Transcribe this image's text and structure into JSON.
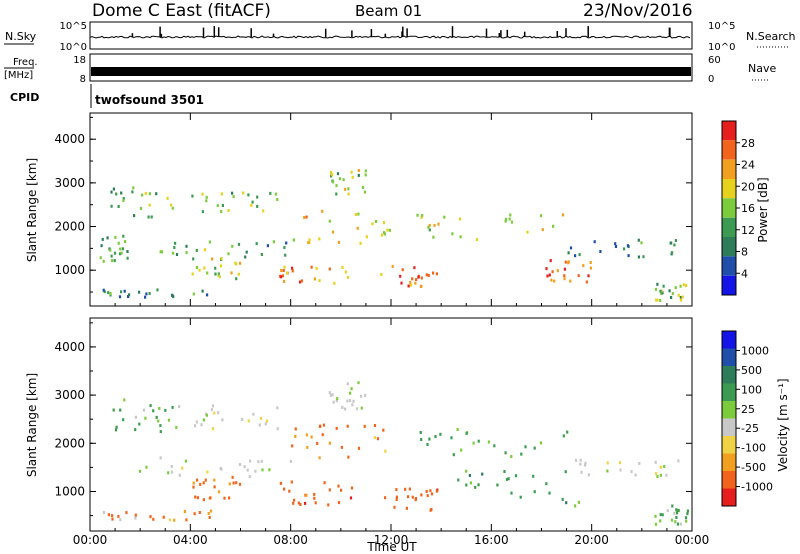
{
  "header": {
    "station": "Dome C East (fitACF)",
    "beam": "Beam 01",
    "date": "23/Nov/2016"
  },
  "colors": {
    "power_scale": [
      "#1414e6",
      "#1f4fa8",
      "#2e7d5a",
      "#3c9a52",
      "#7ccb3c",
      "#e6d21e",
      "#f0a01e",
      "#f0641e",
      "#e61e1e"
    ],
    "velocity_scale": [
      "#e61e1e",
      "#f0641e",
      "#f0a01e",
      "#f0d246",
      "#c8c8c8",
      "#7ccb3c",
      "#3c9a52",
      "#2e7d5a",
      "#1f4fa8",
      "#1414e6"
    ]
  },
  "panels": {
    "nsky": {
      "left_label": "N.Sky",
      "left_ticks": [
        "10^5",
        "10^0"
      ],
      "right_label": "N.Search",
      "right_ticks": [
        "10^5",
        "10^0"
      ]
    },
    "freq": {
      "left_label_1": "Freq.",
      "left_label_2": "[MHz]",
      "left_ticks": [
        "18",
        "8"
      ],
      "right_label": "Nave",
      "right_ticks": [
        "60",
        "0"
      ]
    },
    "cpid": {
      "label": "CPID",
      "text": "twofsound 3501"
    }
  },
  "chart_data": [
    {
      "type": "heatmap",
      "title": "",
      "xlabel": "",
      "ylabel": "Slant Range [km]",
      "xlim": [
        "00:00",
        "24:00"
      ],
      "ylim": [
        180,
        4600
      ],
      "yticks": [
        "1000",
        "2000",
        "3000",
        "4000"
      ],
      "colorbar": {
        "label": "Power [dB]",
        "range": [
          0,
          32
        ],
        "ticks": [
          "4",
          "8",
          "12",
          "16",
          "20",
          "24",
          "28"
        ]
      },
      "blobs": [
        {
          "t": [
            0.3,
            4.8
          ],
          "r": [
            380,
            560
          ],
          "value": 10
        },
        {
          "t": [
            0.3,
            1.5
          ],
          "r": [
            1200,
            1800
          ],
          "value": 12
        },
        {
          "t": [
            0.8,
            3.5
          ],
          "r": [
            2200,
            2900
          ],
          "value": 14
        },
        {
          "t": [
            1.5,
            8.0
          ],
          "r": [
            1300,
            1650
          ],
          "value": 12
        },
        {
          "t": [
            3.5,
            7.5
          ],
          "r": [
            2300,
            2800
          ],
          "value": 16
        },
        {
          "t": [
            4.0,
            6.0
          ],
          "r": [
            800,
            1300
          ],
          "value": 18
        },
        {
          "t": [
            7.5,
            10.5
          ],
          "r": [
            700,
            1200
          ],
          "value": 24
        },
        {
          "t": [
            8.0,
            12.0
          ],
          "r": [
            1600,
            2400
          ],
          "value": 20
        },
        {
          "t": [
            9.5,
            11.0
          ],
          "r": [
            2700,
            3300
          ],
          "value": 16
        },
        {
          "t": [
            11.5,
            14.0
          ],
          "r": [
            600,
            1100
          ],
          "value": 26
        },
        {
          "t": [
            13.0,
            19.0
          ],
          "r": [
            1700,
            2300
          ],
          "value": 18
        },
        {
          "t": [
            18.0,
            20.0
          ],
          "r": [
            700,
            1300
          ],
          "value": 24
        },
        {
          "t": [
            19.0,
            23.5
          ],
          "r": [
            1300,
            1700
          ],
          "value": 10
        },
        {
          "t": [
            22.5,
            23.8
          ],
          "r": [
            300,
            700
          ],
          "value": 16
        }
      ]
    },
    {
      "type": "heatmap",
      "title": "",
      "xlabel": "Time UT",
      "ylabel": "Slant Range [km]",
      "xlim": [
        "00:00",
        "24:00"
      ],
      "xticks": [
        "00:00",
        "04:00",
        "08:00",
        "12:00",
        "16:00",
        "20:00",
        "00:00"
      ],
      "ylim": [
        180,
        4600
      ],
      "yticks": [
        "1000",
        "2000",
        "3000",
        "4000"
      ],
      "colorbar": {
        "label": "Velocity [m s⁻¹]",
        "ticks": [
          "1000",
          "500",
          "100",
          "25",
          "-25",
          "-100",
          "-500",
          "-1000"
        ]
      },
      "blobs": [
        {
          "t": [
            0.3,
            4.8
          ],
          "r": [
            380,
            600
          ],
          "value": -100
        },
        {
          "t": [
            0.8,
            3.5
          ],
          "r": [
            2200,
            2900
          ],
          "value": 100
        },
        {
          "t": [
            1.5,
            8.0
          ],
          "r": [
            1300,
            1700
          ],
          "value": 0
        },
        {
          "t": [
            3.5,
            7.5
          ],
          "r": [
            2300,
            2800
          ],
          "value": 0
        },
        {
          "t": [
            4.0,
            6.0
          ],
          "r": [
            800,
            1300
          ],
          "value": -200
        },
        {
          "t": [
            7.5,
            10.5
          ],
          "r": [
            700,
            1200
          ],
          "value": -300
        },
        {
          "t": [
            8.0,
            12.0
          ],
          "r": [
            1600,
            2400
          ],
          "value": -150
        },
        {
          "t": [
            9.5,
            11.0
          ],
          "r": [
            2700,
            3300
          ],
          "value": 0
        },
        {
          "t": [
            11.5,
            14.0
          ],
          "r": [
            600,
            1100
          ],
          "value": -300
        },
        {
          "t": [
            13.0,
            19.0
          ],
          "r": [
            1700,
            2300
          ],
          "value": 150
        },
        {
          "t": [
            14.5,
            19.5
          ],
          "r": [
            700,
            1500
          ],
          "value": 200
        },
        {
          "t": [
            19.0,
            23.5
          ],
          "r": [
            1300,
            1700
          ],
          "value": 0
        },
        {
          "t": [
            22.5,
            23.8
          ],
          "r": [
            300,
            700
          ],
          "value": 100
        }
      ]
    }
  ]
}
